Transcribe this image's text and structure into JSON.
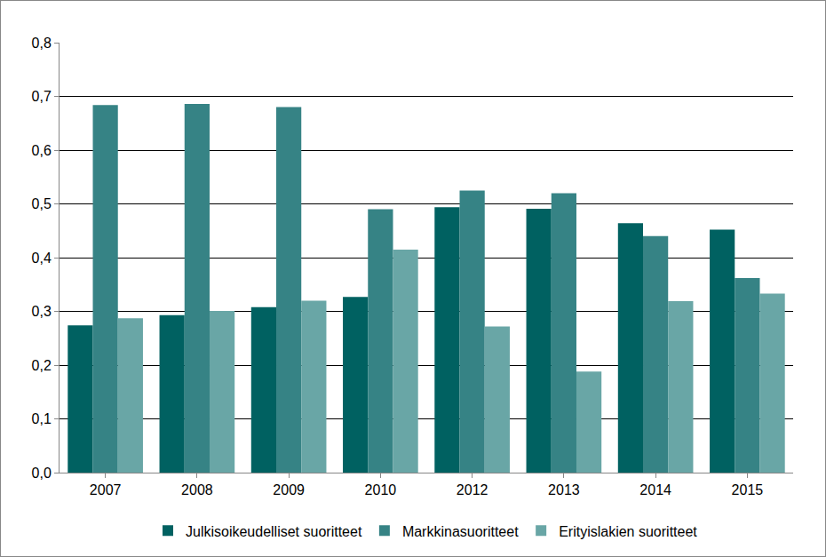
{
  "chart_data": {
    "type": "bar",
    "categories": [
      "2007",
      "2008",
      "2009",
      "2010",
      "2012",
      "2013",
      "2014",
      "2015"
    ],
    "series": [
      {
        "name": "Julkisoikeudelliset suoritteet",
        "color": "#006161",
        "values": [
          0.274,
          0.293,
          0.308,
          0.327,
          0.494,
          0.491,
          0.464,
          0.452
        ]
      },
      {
        "name": "Markkinasuoritteet",
        "color": "#368385",
        "values": [
          0.684,
          0.686,
          0.68,
          0.49,
          0.525,
          0.52,
          0.44,
          0.362
        ]
      },
      {
        "name": "Erityislakien suoritteet",
        "color": "#69a6a6",
        "values": [
          0.287,
          0.301,
          0.32,
          0.415,
          0.272,
          0.188,
          0.319,
          0.333
        ]
      }
    ],
    "ylim": [
      0,
      0.8
    ],
    "yticks": [
      {
        "value": 0,
        "label": "0,0"
      },
      {
        "value": 0.1,
        "label": "0,1"
      },
      {
        "value": 0.2,
        "label": "0,2"
      },
      {
        "value": 0.3,
        "label": "0,3"
      },
      {
        "value": 0.4,
        "label": "0,4"
      },
      {
        "value": 0.5,
        "label": "0,5"
      },
      {
        "value": 0.6,
        "label": "0,6"
      },
      {
        "value": 0.7,
        "label": "0,7"
      },
      {
        "value": 0.8,
        "label": "0,8"
      }
    ],
    "grid": true,
    "legend": "bottom"
  }
}
